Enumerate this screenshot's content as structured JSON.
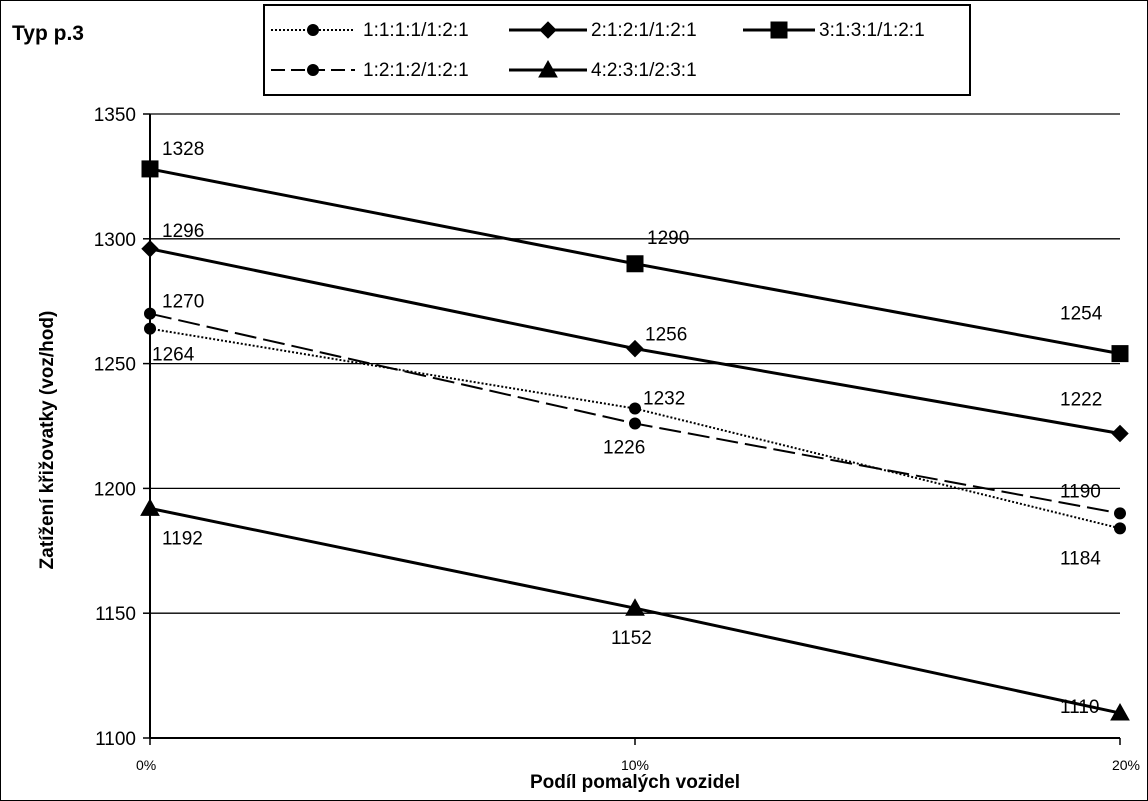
{
  "chart_data": {
    "type": "line",
    "title": "Typ p.3",
    "xlabel": "Podíl pomalých vozidel",
    "ylabel": "Zatížení křižovatky (voz/hod)",
    "categories": [
      "0%",
      "10%",
      "20%"
    ],
    "ylim": [
      1100,
      1350
    ],
    "yticks": [
      1100,
      1150,
      1200,
      1250,
      1300,
      1350
    ],
    "ytick_labels": [
      "1100",
      "1150",
      "1200",
      "1250",
      "1300",
      "1350"
    ],
    "grid": "horizontal",
    "legend_position": "top",
    "series": [
      {
        "name": "1:1:1:1/1:2:1",
        "values": [
          1264,
          1232,
          1184
        ],
        "labels": [
          "1264",
          "1232",
          "1184"
        ],
        "line_style": "dotted",
        "marker": "circle",
        "color": "#000000"
      },
      {
        "name": "2:1:2:1/1:2:1",
        "values": [
          1296,
          1256,
          1222
        ],
        "labels": [
          "1296",
          "1256",
          "1222"
        ],
        "line_style": "solid",
        "marker": "diamond",
        "color": "#000000"
      },
      {
        "name": "3:1:3:1/1:2:1",
        "values": [
          1328,
          1290,
          1254
        ],
        "labels": [
          "1328",
          "1290",
          "1254"
        ],
        "line_style": "solid",
        "marker": "square",
        "color": "#000000"
      },
      {
        "name": "1:2:1:2/1:2:1",
        "values": [
          1270,
          1226,
          1190
        ],
        "labels": [
          "1270",
          "1226",
          "1190"
        ],
        "line_style": "dashed",
        "marker": "circle",
        "color": "#000000"
      },
      {
        "name": "4:2:3:1/2:3:1",
        "values": [
          1192,
          1152,
          1110
        ],
        "labels": [
          "1192",
          "1152",
          "1110"
        ],
        "line_style": "solid",
        "marker": "triangle",
        "color": "#000000"
      }
    ]
  }
}
